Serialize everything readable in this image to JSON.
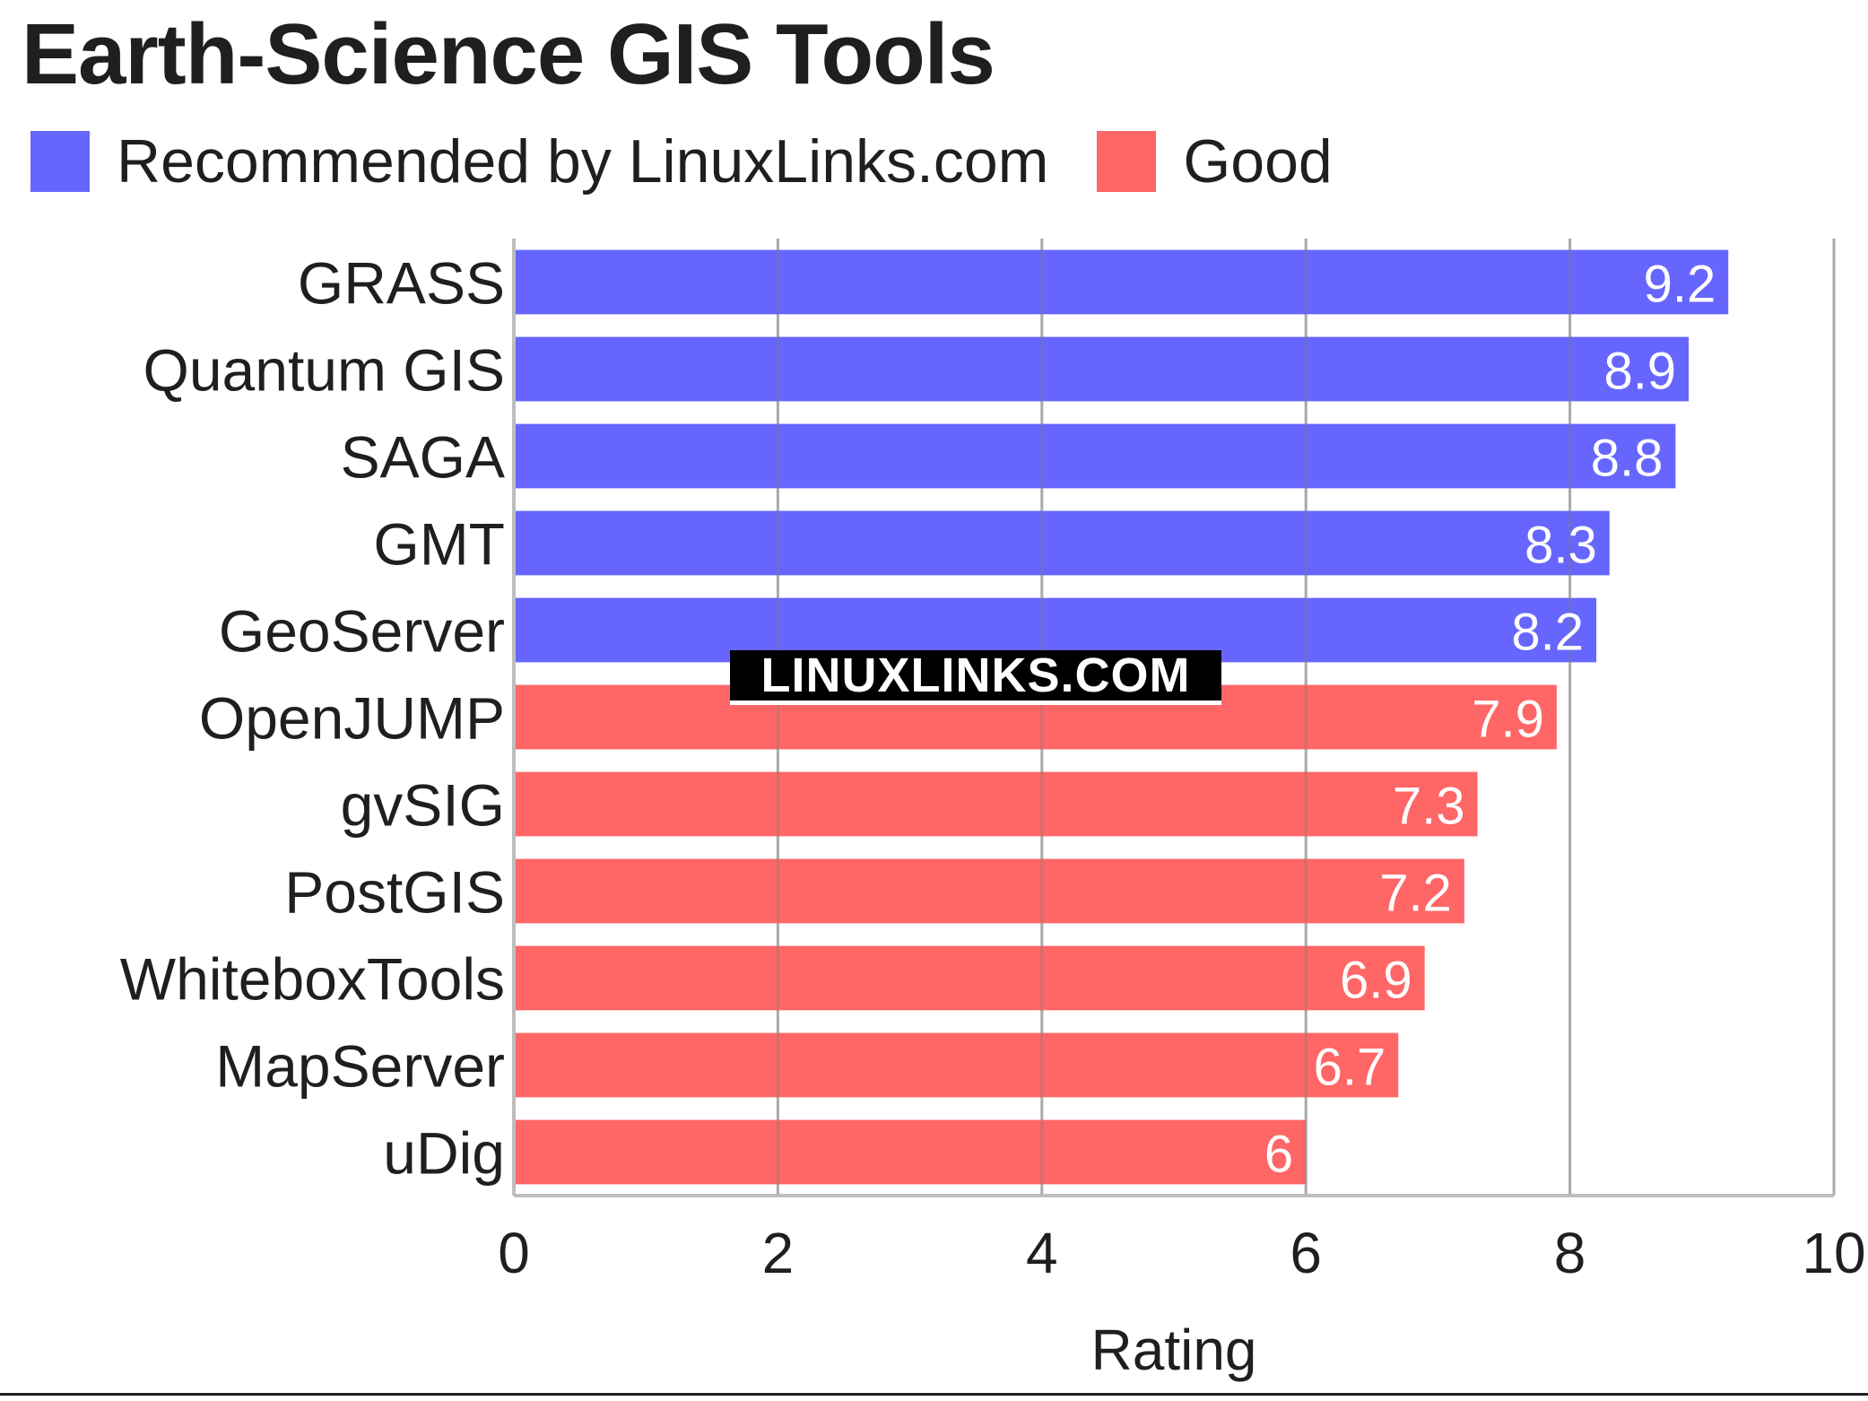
{
  "title": "Earth-Science GIS Tools",
  "legend": [
    {
      "label": "Recommended by LinuxLinks.com",
      "color": "#6666ff"
    },
    {
      "label": "Good",
      "color": "#ff6666"
    }
  ],
  "watermark": "LINUXLINKS.COM",
  "chart_data": {
    "type": "bar",
    "orientation": "horizontal",
    "categories": [
      "GRASS",
      "Quantum GIS",
      "SAGA",
      "GMT",
      "GeoServer",
      "OpenJUMP",
      "gvSIG",
      "PostGIS",
      "WhiteboxTools",
      "MapServer",
      "uDig"
    ],
    "values": [
      9.2,
      8.9,
      8.8,
      8.3,
      8.2,
      7.9,
      7.3,
      7.2,
      6.9,
      6.7,
      6
    ],
    "value_labels": [
      "9.2",
      "8.9",
      "8.8",
      "8.3",
      "8.2",
      "7.9",
      "7.3",
      "7.2",
      "6.9",
      "6.7",
      "6"
    ],
    "groups": [
      "Recommended by LinuxLinks.com",
      "Recommended by LinuxLinks.com",
      "Recommended by LinuxLinks.com",
      "Recommended by LinuxLinks.com",
      "Recommended by LinuxLinks.com",
      "Good",
      "Good",
      "Good",
      "Good",
      "Good",
      "Good"
    ],
    "colors": [
      "#6666ff",
      "#6666ff",
      "#6666ff",
      "#6666ff",
      "#6666ff",
      "#ff6666",
      "#ff6666",
      "#ff6666",
      "#ff6666",
      "#ff6666",
      "#ff6666"
    ],
    "xlabel": "Rating",
    "xlim": [
      0,
      10
    ],
    "xticks": [
      0,
      2,
      4,
      6,
      8,
      10
    ],
    "xtick_labels": [
      "0",
      "2",
      "4",
      "6",
      "8",
      "10"
    ],
    "grid": true,
    "legend_position": "top-left"
  }
}
